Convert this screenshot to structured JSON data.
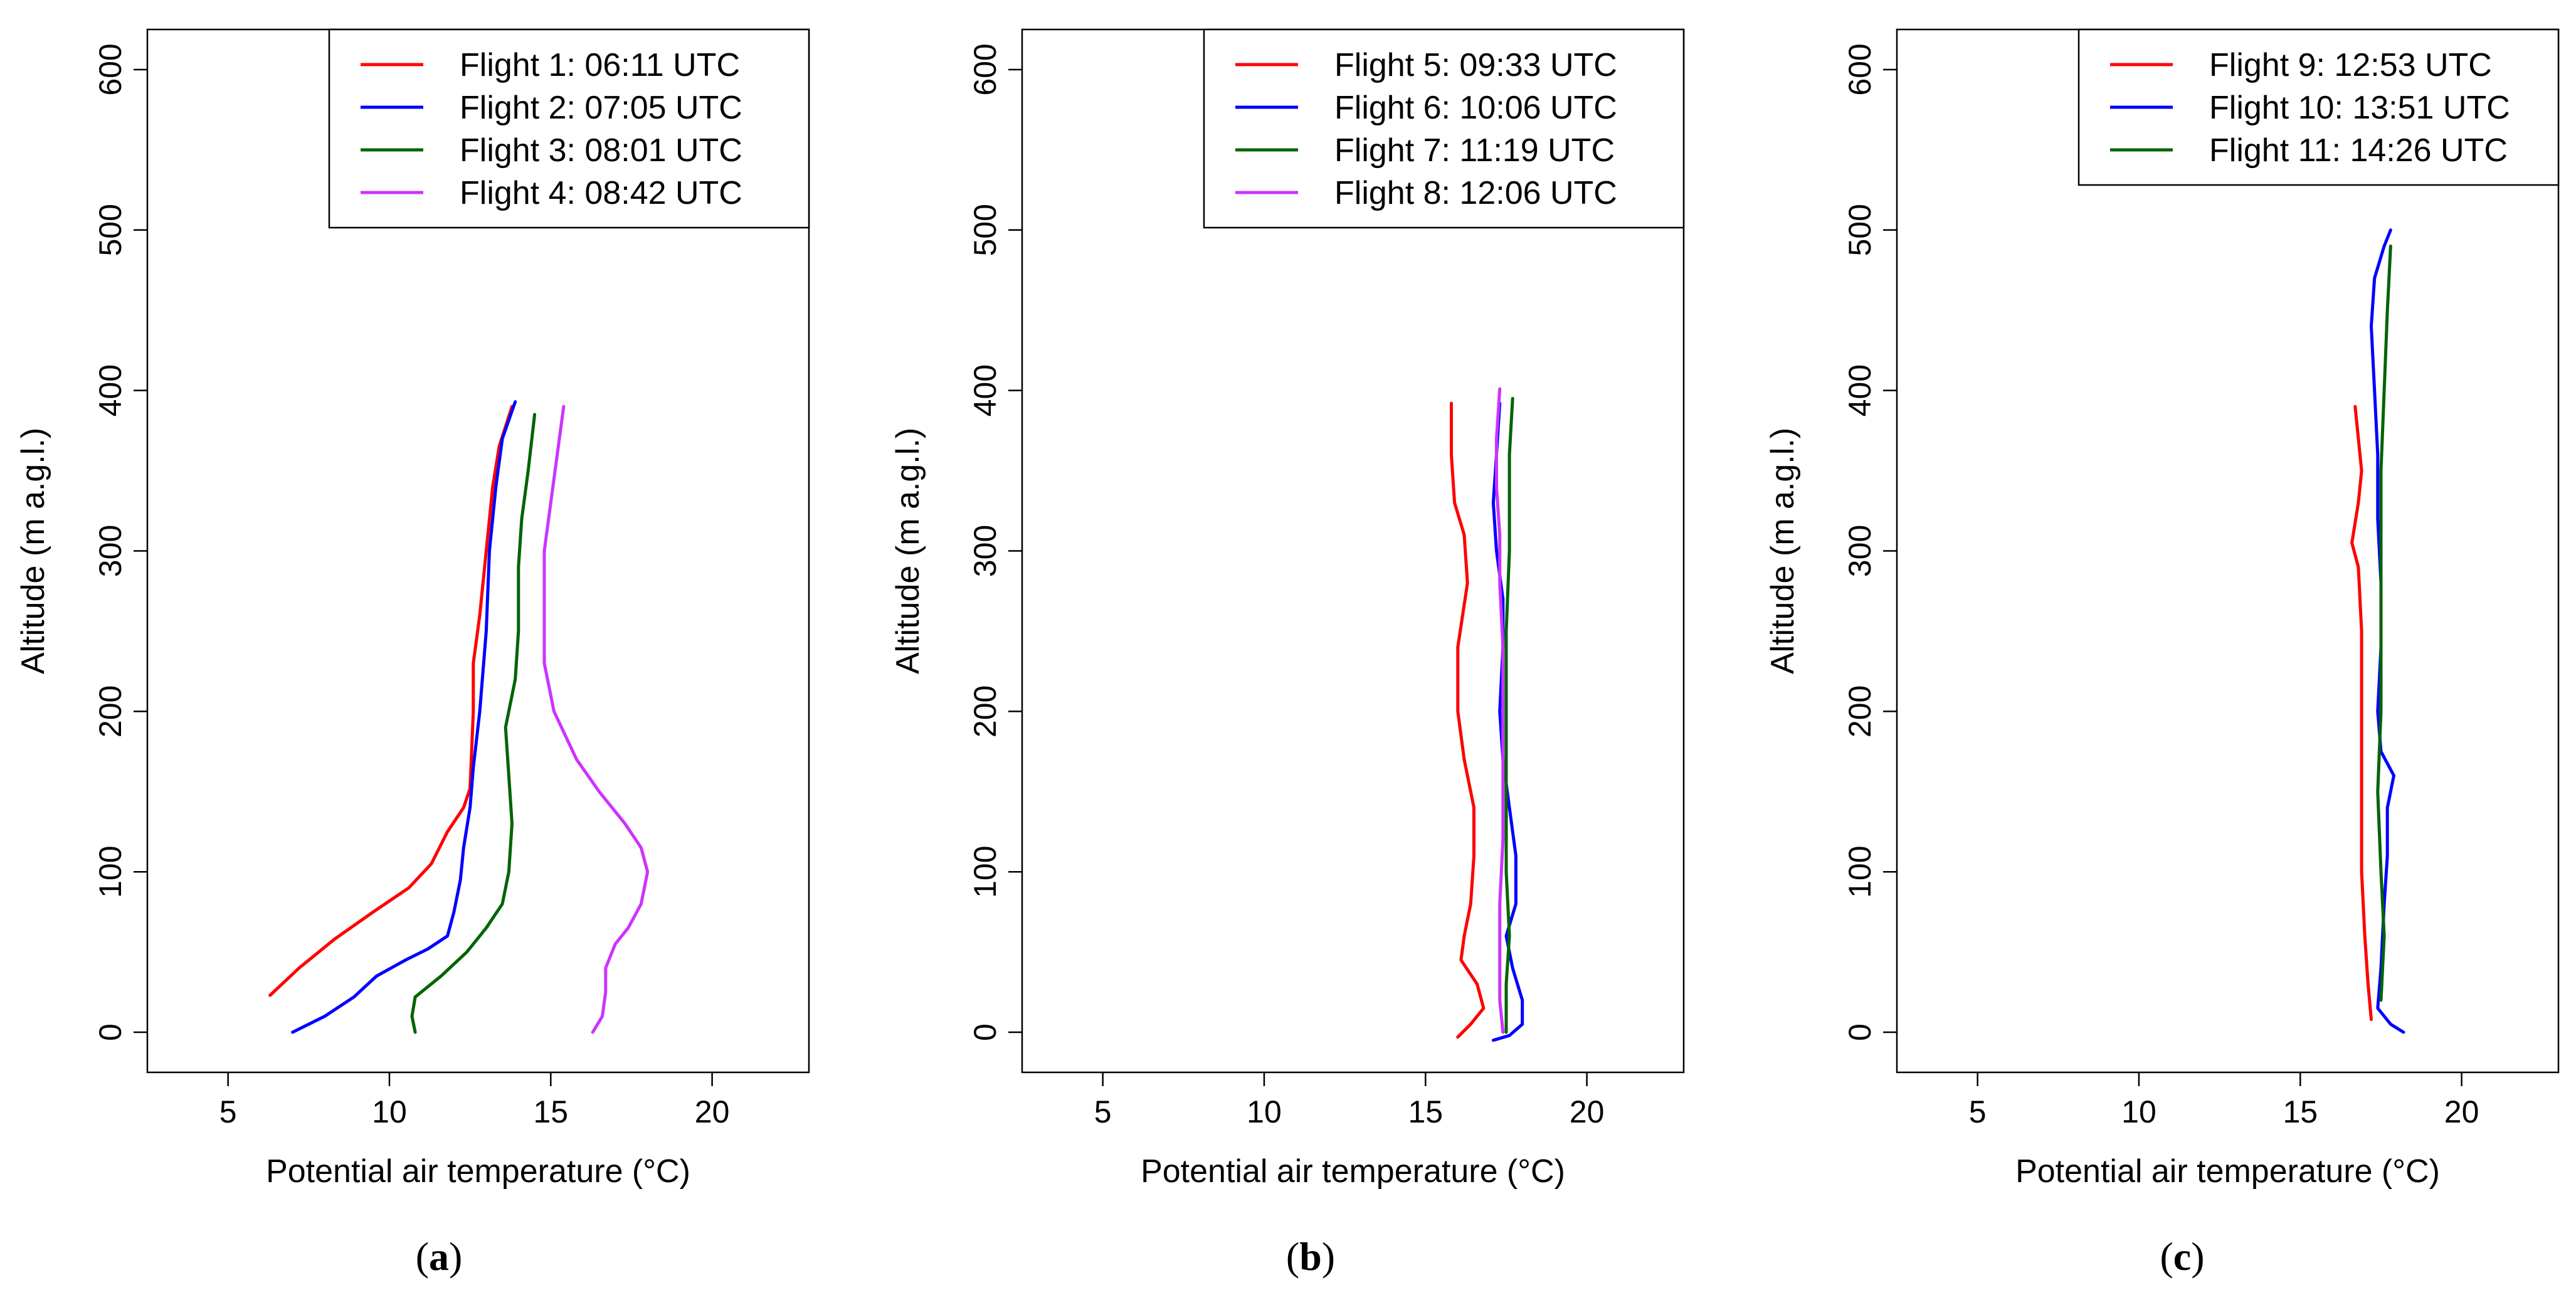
{
  "figure": {
    "panel_labels": [
      {
        "open": "(",
        "letter": "a",
        "close": ")"
      },
      {
        "open": "(",
        "letter": "b",
        "close": ")"
      },
      {
        "open": "(",
        "letter": "c",
        "close": ")"
      }
    ]
  },
  "chart_data": [
    {
      "type": "line",
      "panel": "a",
      "xlabel": "Potential air temperature (°C)",
      "ylabel": "Altitude (m a.g.l.)",
      "xlim": [
        2.5,
        23
      ],
      "ylim": [
        -25,
        625
      ],
      "xticks": [
        5,
        10,
        15,
        20
      ],
      "yticks": [
        0,
        100,
        200,
        300,
        400,
        500,
        600
      ],
      "legend_position": "top-right",
      "series": [
        {
          "name": "Flight 1: 06:11 UTC",
          "color": "#ff0000",
          "points": [
            [
              6.3,
              23
            ],
            [
              7.2,
              40
            ],
            [
              8.3,
              58
            ],
            [
              9.5,
              75
            ],
            [
              10.6,
              90
            ],
            [
              11.3,
              105
            ],
            [
              11.8,
              125
            ],
            [
              12.3,
              140
            ],
            [
              12.5,
              152
            ],
            [
              12.6,
              200
            ],
            [
              12.6,
              230
            ],
            [
              12.8,
              260
            ],
            [
              13.0,
              300
            ],
            [
              13.2,
              340
            ],
            [
              13.4,
              365
            ],
            [
              13.8,
              390
            ]
          ]
        },
        {
          "name": "Flight 2: 07:05 UTC",
          "color": "#0000ff",
          "points": [
            [
              7.0,
              0
            ],
            [
              8.0,
              10
            ],
            [
              8.9,
              22
            ],
            [
              9.6,
              35
            ],
            [
              10.5,
              45
            ],
            [
              11.2,
              52
            ],
            [
              11.8,
              60
            ],
            [
              12.0,
              75
            ],
            [
              12.2,
              95
            ],
            [
              12.3,
              115
            ],
            [
              12.5,
              140
            ],
            [
              12.6,
              165
            ],
            [
              12.8,
              200
            ],
            [
              13.0,
              250
            ],
            [
              13.1,
              300
            ],
            [
              13.3,
              340
            ],
            [
              13.5,
              370
            ],
            [
              13.9,
              393
            ]
          ]
        },
        {
          "name": "Flight 3: 08:01 UTC",
          "color": "#006400",
          "points": [
            [
              10.8,
              0
            ],
            [
              10.7,
              10
            ],
            [
              10.8,
              22
            ],
            [
              11.6,
              35
            ],
            [
              12.4,
              50
            ],
            [
              13.0,
              65
            ],
            [
              13.5,
              80
            ],
            [
              13.7,
              100
            ],
            [
              13.8,
              130
            ],
            [
              13.7,
              160
            ],
            [
              13.6,
              190
            ],
            [
              13.9,
              220
            ],
            [
              14.0,
              250
            ],
            [
              14.0,
              290
            ],
            [
              14.1,
              320
            ],
            [
              14.3,
              350
            ],
            [
              14.5,
              385
            ]
          ]
        },
        {
          "name": "Flight 4: 08:42 UTC",
          "color": "#cc33ff",
          "points": [
            [
              16.3,
              0
            ],
            [
              16.6,
              10
            ],
            [
              16.7,
              25
            ],
            [
              16.7,
              40
            ],
            [
              17.0,
              55
            ],
            [
              17.4,
              65
            ],
            [
              17.8,
              80
            ],
            [
              18.0,
              100
            ],
            [
              17.8,
              115
            ],
            [
              17.3,
              130
            ],
            [
              16.5,
              150
            ],
            [
              15.8,
              170
            ],
            [
              15.1,
              200
            ],
            [
              14.8,
              230
            ],
            [
              14.8,
              260
            ],
            [
              14.8,
              300
            ],
            [
              15.0,
              330
            ],
            [
              15.2,
              360
            ],
            [
              15.4,
              390
            ]
          ]
        }
      ]
    },
    {
      "type": "line",
      "panel": "b",
      "xlabel": "Potential air temperature (°C)",
      "ylabel": "Altitude (m a.g.l.)",
      "xlim": [
        2.5,
        23
      ],
      "ylim": [
        -25,
        625
      ],
      "xticks": [
        5,
        10,
        15,
        20
      ],
      "yticks": [
        0,
        100,
        200,
        300,
        400,
        500,
        600
      ],
      "legend_position": "top-right",
      "series": [
        {
          "name": "Flight 5: 09:33 UTC",
          "color": "#ff0000",
          "points": [
            [
              16.0,
              -3
            ],
            [
              16.4,
              5
            ],
            [
              16.8,
              15
            ],
            [
              16.6,
              30
            ],
            [
              16.1,
              45
            ],
            [
              16.2,
              60
            ],
            [
              16.4,
              80
            ],
            [
              16.5,
              110
            ],
            [
              16.5,
              140
            ],
            [
              16.2,
              170
            ],
            [
              16.0,
              200
            ],
            [
              16.0,
              240
            ],
            [
              16.3,
              280
            ],
            [
              16.2,
              310
            ],
            [
              15.9,
              330
            ],
            [
              15.8,
              360
            ],
            [
              15.8,
              392
            ]
          ]
        },
        {
          "name": "Flight 6: 10:06 UTC",
          "color": "#0000ff",
          "points": [
            [
              17.1,
              -5
            ],
            [
              17.6,
              -2
            ],
            [
              18.0,
              5
            ],
            [
              18.0,
              20
            ],
            [
              17.7,
              40
            ],
            [
              17.5,
              60
            ],
            [
              17.8,
              80
            ],
            [
              17.8,
              110
            ],
            [
              17.6,
              140
            ],
            [
              17.4,
              170
            ],
            [
              17.3,
              200
            ],
            [
              17.4,
              240
            ],
            [
              17.4,
              270
            ],
            [
              17.2,
              300
            ],
            [
              17.1,
              330
            ],
            [
              17.2,
              360
            ],
            [
              17.3,
              392
            ]
          ]
        },
        {
          "name": "Flight 7: 11:19 UTC",
          "color": "#006400",
          "points": [
            [
              17.5,
              0
            ],
            [
              17.5,
              30
            ],
            [
              17.6,
              60
            ],
            [
              17.5,
              100
            ],
            [
              17.5,
              150
            ],
            [
              17.5,
              200
            ],
            [
              17.5,
              250
            ],
            [
              17.6,
              300
            ],
            [
              17.6,
              330
            ],
            [
              17.6,
              360
            ],
            [
              17.7,
              395
            ]
          ]
        },
        {
          "name": "Flight 8: 12:06 UTC",
          "color": "#cc33ff",
          "points": [
            [
              17.4,
              0
            ],
            [
              17.3,
              20
            ],
            [
              17.3,
              50
            ],
            [
              17.3,
              80
            ],
            [
              17.4,
              120
            ],
            [
              17.4,
              160
            ],
            [
              17.4,
              200
            ],
            [
              17.4,
              240
            ],
            [
              17.3,
              280
            ],
            [
              17.3,
              310
            ],
            [
              17.2,
              340
            ],
            [
              17.2,
              370
            ],
            [
              17.3,
              401
            ]
          ]
        }
      ]
    },
    {
      "type": "line",
      "panel": "c",
      "xlabel": "Potential air temperature (°C)",
      "ylabel": "Altitude (m a.g.l.)",
      "xlim": [
        2.5,
        23
      ],
      "ylim": [
        -25,
        625
      ],
      "xticks": [
        5,
        10,
        15,
        20
      ],
      "yticks": [
        0,
        100,
        200,
        300,
        400,
        500,
        600
      ],
      "legend_position": "top-right",
      "series": [
        {
          "name": "Flight 9: 12:53 UTC",
          "color": "#ff0000",
          "points": [
            [
              17.2,
              8
            ],
            [
              17.1,
              30
            ],
            [
              17.0,
              60
            ],
            [
              16.9,
              100
            ],
            [
              16.9,
              150
            ],
            [
              16.9,
              200
            ],
            [
              16.9,
              250
            ],
            [
              16.8,
              290
            ],
            [
              16.6,
              305
            ],
            [
              16.8,
              330
            ],
            [
              16.9,
              350
            ],
            [
              16.8,
              370
            ],
            [
              16.7,
              390
            ]
          ]
        },
        {
          "name": "Flight 10: 13:51 UTC",
          "color": "#0000ff",
          "points": [
            [
              18.2,
              0
            ],
            [
              17.8,
              5
            ],
            [
              17.4,
              15
            ],
            [
              17.5,
              40
            ],
            [
              17.6,
              80
            ],
            [
              17.7,
              110
            ],
            [
              17.7,
              140
            ],
            [
              17.9,
              160
            ],
            [
              17.5,
              175
            ],
            [
              17.4,
              200
            ],
            [
              17.5,
              240
            ],
            [
              17.5,
              280
            ],
            [
              17.4,
              320
            ],
            [
              17.4,
              360
            ],
            [
              17.3,
              400
            ],
            [
              17.2,
              440
            ],
            [
              17.3,
              470
            ],
            [
              17.6,
              490
            ],
            [
              17.8,
              500
            ]
          ]
        },
        {
          "name": "Flight 11: 14:26 UTC",
          "color": "#006400",
          "points": [
            [
              17.5,
              20
            ],
            [
              17.6,
              60
            ],
            [
              17.5,
              100
            ],
            [
              17.4,
              150
            ],
            [
              17.5,
              200
            ],
            [
              17.5,
              250
            ],
            [
              17.5,
              300
            ],
            [
              17.5,
              350
            ],
            [
              17.6,
              400
            ],
            [
              17.7,
              450
            ],
            [
              17.8,
              490
            ]
          ]
        }
      ]
    }
  ]
}
